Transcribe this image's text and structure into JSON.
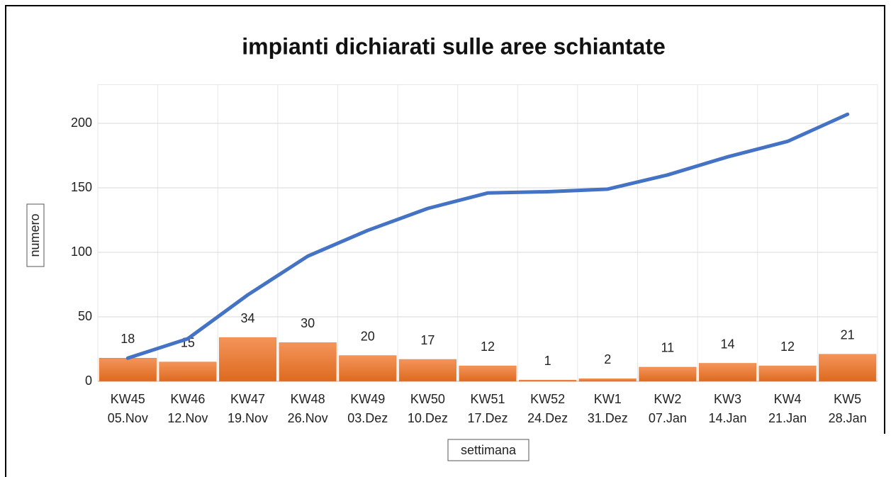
{
  "chart_data": {
    "type": "bar_line",
    "title": "impianti dichiarati sulle aree schiantate",
    "x_label": "settimana",
    "y_label": "numero",
    "categories": [
      [
        "KW45",
        "05.Nov"
      ],
      [
        "KW46",
        "12.Nov"
      ],
      [
        "KW47",
        "19.Nov"
      ],
      [
        "KW48",
        "26.Nov"
      ],
      [
        "KW49",
        "03.Dez"
      ],
      [
        "KW50",
        "10.Dez"
      ],
      [
        "KW51",
        "17.Dez"
      ],
      [
        "KW52",
        "24.Dez"
      ],
      [
        "KW1",
        "31.Dez"
      ],
      [
        "KW2",
        "07.Jan"
      ],
      [
        "KW3",
        "14.Jan"
      ],
      [
        "KW4",
        "21.Jan"
      ],
      [
        "KW5",
        "28.Jan"
      ]
    ],
    "series": [
      {
        "type": "bar",
        "color": "#ed7d31",
        "values": [
          18,
          15,
          34,
          30,
          20,
          17,
          12,
          1,
          2,
          11,
          14,
          12,
          21
        ]
      },
      {
        "type": "line",
        "color": "#4472c4",
        "values": [
          18,
          33,
          67,
          97,
          117,
          134,
          146,
          147,
          149,
          160,
          174,
          186,
          207
        ]
      }
    ],
    "ylim": [
      0,
      230
    ],
    "yticks": [
      0,
      50,
      100,
      150,
      200
    ],
    "grid": true
  }
}
